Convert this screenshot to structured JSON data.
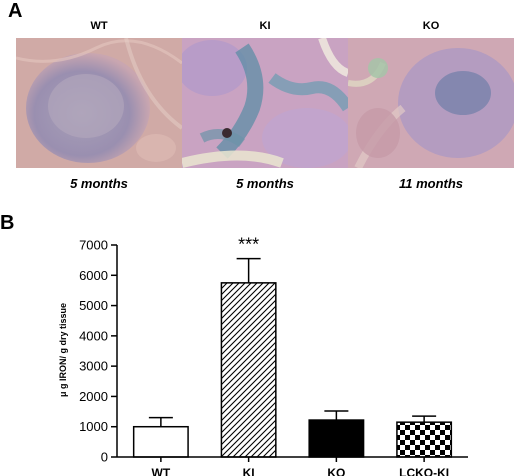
{
  "panel_a": {
    "letter": "A",
    "images": [
      {
        "title": "WT",
        "age": "5 months"
      },
      {
        "title": "KI",
        "age": "5 months"
      },
      {
        "title": "KO",
        "age": "11 months"
      }
    ]
  },
  "panel_b": {
    "letter": "B"
  },
  "chart_data": {
    "type": "bar",
    "categories": [
      "WT",
      "KI",
      "KO",
      "LCKO-KI"
    ],
    "values": [
      1000,
      5750,
      1220,
      1150
    ],
    "errors": [
      300,
      800,
      300,
      200
    ],
    "fills": [
      "white",
      "diagonal-hatch",
      "black",
      "checker"
    ],
    "annotations": [
      {
        "category": "KI",
        "text": "***"
      }
    ],
    "ylabel": "μ g IRON/ g dry tissue",
    "xlabel": "",
    "ylim": [
      0,
      7000
    ],
    "yticks": [
      0,
      1000,
      2000,
      3000,
      4000,
      5000,
      6000,
      7000
    ],
    "grid": false
  }
}
